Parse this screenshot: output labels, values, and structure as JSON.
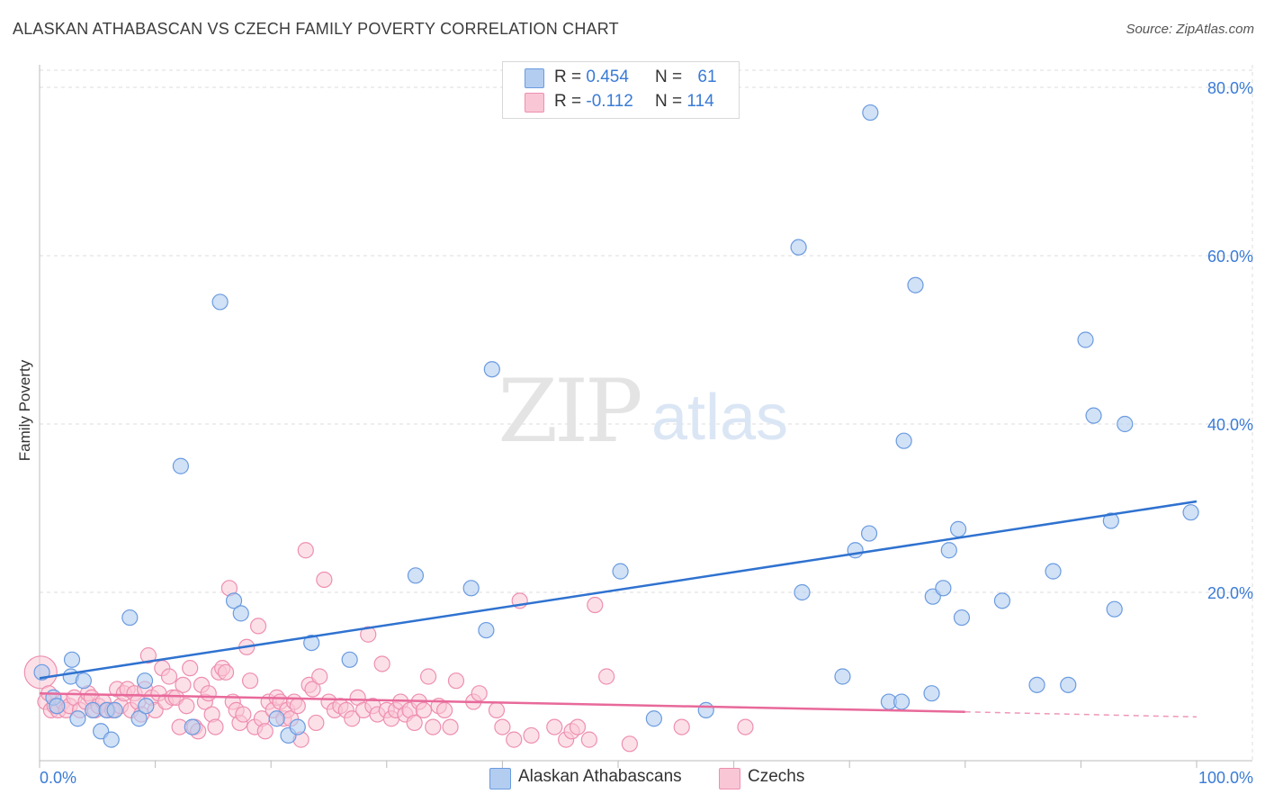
{
  "title": "ALASKAN ATHABASCAN VS CZECH FAMILY POVERTY CORRELATION CHART",
  "source": "Source: ZipAtlas.com",
  "watermark": {
    "zip": "ZIP",
    "atlas": "atlas"
  },
  "legend": {
    "series1": {
      "r_label": "R =",
      "r_value": "0.454",
      "n_label": "N =",
      "n_value": "61"
    },
    "series2": {
      "r_label": "R =",
      "r_value": "-0.112",
      "n_label": "N =",
      "n_value": "114"
    }
  },
  "colors": {
    "blue_fill": "#b3cdf0",
    "blue_stroke": "#6a9be0",
    "blue_line": "#2f72d0",
    "pink_fill": "#f9c6d6",
    "pink_stroke": "#ee8fb0",
    "pink_line": "#e8699a",
    "grid": "#dddddd",
    "tick_label": "#3a7bd5"
  },
  "chart_data": {
    "type": "scatter",
    "title": "ALASKAN ATHABASCAN VS CZECH FAMILY POVERTY CORRELATION CHART",
    "xlabel": "",
    "ylabel": "Family Poverty",
    "xlim": [
      0,
      105
    ],
    "ylim": [
      0,
      84
    ],
    "x_tick_labels": {
      "left": "0.0%",
      "right": "100.0%"
    },
    "y_ticks": [
      {
        "value": 20,
        "label": "20.0%"
      },
      {
        "value": 40,
        "label": "40.0%"
      },
      {
        "value": 60,
        "label": "60.0%"
      },
      {
        "value": 80,
        "label": "80.0%"
      }
    ],
    "series": [
      {
        "name": "Alaskan Athabascans",
        "color": "#b3cdf0",
        "stroke": "#6a9be0",
        "trend": {
          "x": [
            0,
            100
          ],
          "y": [
            9.8,
            30.8
          ],
          "color": "#2f72d0"
        },
        "points": [
          [
            0.2,
            10.5
          ],
          [
            1.2,
            7.5
          ],
          [
            1.5,
            6.5
          ],
          [
            2.7,
            10
          ],
          [
            2.8,
            12
          ],
          [
            3.3,
            5
          ],
          [
            3.8,
            9.5
          ],
          [
            4.6,
            6
          ],
          [
            5.3,
            3.5
          ],
          [
            5.8,
            6
          ],
          [
            6.2,
            2.5
          ],
          [
            6.5,
            6
          ],
          [
            7.8,
            17
          ],
          [
            8.6,
            5
          ],
          [
            9.1,
            9.5
          ],
          [
            9.2,
            6.5
          ],
          [
            12.2,
            35
          ],
          [
            13.2,
            4
          ],
          [
            15.6,
            54.5
          ],
          [
            16.8,
            19
          ],
          [
            17.4,
            17.5
          ],
          [
            20.5,
            5
          ],
          [
            21.5,
            3
          ],
          [
            22.3,
            4
          ],
          [
            23.5,
            14
          ],
          [
            26.8,
            12
          ],
          [
            32.5,
            22
          ],
          [
            37.3,
            20.5
          ],
          [
            38.6,
            15.5
          ],
          [
            39.1,
            46.5
          ],
          [
            50.2,
            22.5
          ],
          [
            53.1,
            5
          ],
          [
            57.6,
            6
          ],
          [
            65.6,
            61
          ],
          [
            65.9,
            20
          ],
          [
            69.4,
            10
          ],
          [
            70.5,
            25
          ],
          [
            71.7,
            27
          ],
          [
            71.8,
            77
          ],
          [
            73.4,
            7
          ],
          [
            74.5,
            7
          ],
          [
            74.7,
            38
          ],
          [
            75.7,
            56.5
          ],
          [
            77.1,
            8
          ],
          [
            77.2,
            19.5
          ],
          [
            78.1,
            20.5
          ],
          [
            78.6,
            25
          ],
          [
            79.4,
            27.5
          ],
          [
            79.7,
            17
          ],
          [
            83.2,
            19
          ],
          [
            86.2,
            9
          ],
          [
            87.6,
            22.5
          ],
          [
            88.9,
            9
          ],
          [
            90.4,
            50
          ],
          [
            91.1,
            41
          ],
          [
            92.6,
            28.5
          ],
          [
            92.9,
            18
          ],
          [
            93.8,
            40
          ],
          [
            99.5,
            29.5
          ]
        ]
      },
      {
        "name": "Czechs",
        "color": "#f9c6d6",
        "stroke": "#ee8fb0",
        "trend": {
          "x": [
            0,
            80
          ],
          "y": [
            8.0,
            5.8
          ],
          "color": "#e8699a",
          "dash_to": 100,
          "dash_y": 5.2
        },
        "points": [
          [
            0.1,
            10.5
          ],
          [
            0.5,
            7
          ],
          [
            0.8,
            8
          ],
          [
            1.0,
            6
          ],
          [
            1.3,
            6.5
          ],
          [
            1.6,
            6
          ],
          [
            2.0,
            7
          ],
          [
            2.3,
            6
          ],
          [
            2.6,
            6.5
          ],
          [
            3.0,
            7.5
          ],
          [
            3.5,
            6
          ],
          [
            4.0,
            7
          ],
          [
            4.2,
            8
          ],
          [
            4.5,
            7.5
          ],
          [
            4.8,
            6
          ],
          [
            5.1,
            6.5
          ],
          [
            5.5,
            7
          ],
          [
            5.9,
            6
          ],
          [
            6.3,
            6
          ],
          [
            6.7,
            8.5
          ],
          [
            7.0,
            6.5
          ],
          [
            7.3,
            8
          ],
          [
            7.6,
            8.5
          ],
          [
            7.9,
            6
          ],
          [
            8.2,
            8
          ],
          [
            8.5,
            7
          ],
          [
            8.8,
            5.5
          ],
          [
            9.1,
            8.5
          ],
          [
            9.4,
            12.5
          ],
          [
            9.7,
            7.5
          ],
          [
            10.0,
            6
          ],
          [
            10.3,
            8
          ],
          [
            10.6,
            11
          ],
          [
            10.9,
            7
          ],
          [
            11.2,
            10
          ],
          [
            11.5,
            7.5
          ],
          [
            11.8,
            7.5
          ],
          [
            12.1,
            4
          ],
          [
            12.4,
            9
          ],
          [
            12.7,
            6.5
          ],
          [
            13.0,
            11
          ],
          [
            13.4,
            4
          ],
          [
            13.7,
            3.5
          ],
          [
            14.0,
            9
          ],
          [
            14.3,
            7
          ],
          [
            14.6,
            8
          ],
          [
            14.9,
            5.5
          ],
          [
            15.2,
            4
          ],
          [
            15.5,
            10.5
          ],
          [
            15.8,
            11
          ],
          [
            16.1,
            10.5
          ],
          [
            16.4,
            20.5
          ],
          [
            16.7,
            7
          ],
          [
            17.0,
            6
          ],
          [
            17.3,
            4.5
          ],
          [
            17.6,
            5.5
          ],
          [
            17.9,
            13.5
          ],
          [
            18.2,
            9.5
          ],
          [
            18.6,
            4
          ],
          [
            18.9,
            16
          ],
          [
            19.2,
            5
          ],
          [
            19.5,
            3.5
          ],
          [
            19.8,
            7
          ],
          [
            20.2,
            6
          ],
          [
            20.5,
            7.5
          ],
          [
            20.8,
            7
          ],
          [
            21.1,
            5
          ],
          [
            21.4,
            6
          ],
          [
            21.7,
            5
          ],
          [
            22.0,
            7
          ],
          [
            22.3,
            6.5
          ],
          [
            22.6,
            2.5
          ],
          [
            23.0,
            25
          ],
          [
            23.3,
            9
          ],
          [
            23.6,
            8.5
          ],
          [
            23.9,
            4.5
          ],
          [
            24.2,
            10
          ],
          [
            24.6,
            21.5
          ],
          [
            25.0,
            7
          ],
          [
            25.5,
            6
          ],
          [
            26.0,
            6.5
          ],
          [
            26.5,
            6
          ],
          [
            27.0,
            5
          ],
          [
            27.5,
            7.5
          ],
          [
            28.0,
            6
          ],
          [
            28.4,
            15
          ],
          [
            28.8,
            6.5
          ],
          [
            29.2,
            5.5
          ],
          [
            29.6,
            11.5
          ],
          [
            30.0,
            6
          ],
          [
            30.4,
            5
          ],
          [
            30.8,
            6
          ],
          [
            31.2,
            7
          ],
          [
            31.6,
            5.5
          ],
          [
            32.0,
            6
          ],
          [
            32.4,
            4.5
          ],
          [
            32.8,
            7
          ],
          [
            33.2,
            6
          ],
          [
            33.6,
            10
          ],
          [
            34.0,
            4
          ],
          [
            34.5,
            6.5
          ],
          [
            35.0,
            6
          ],
          [
            35.5,
            4
          ],
          [
            36.0,
            9.5
          ],
          [
            37.5,
            7
          ],
          [
            38.0,
            8
          ],
          [
            39.5,
            6
          ],
          [
            40.0,
            4
          ],
          [
            41.0,
            2.5
          ],
          [
            41.5,
            19
          ],
          [
            42.5,
            3
          ],
          [
            44.5,
            4
          ],
          [
            45.5,
            2.5
          ],
          [
            46.0,
            3.5
          ],
          [
            46.5,
            4
          ],
          [
            47.5,
            2.5
          ],
          [
            48.0,
            18.5
          ],
          [
            49.0,
            10
          ],
          [
            51.0,
            2
          ],
          [
            55.5,
            4
          ],
          [
            61.0,
            4
          ]
        ]
      }
    ]
  },
  "bottom_legend": {
    "series1": "Alaskan Athabascans",
    "series2": "Czechs"
  },
  "axis": {
    "ylabel": "Family Poverty",
    "x_left": "0.0%",
    "x_right": "100.0%"
  }
}
